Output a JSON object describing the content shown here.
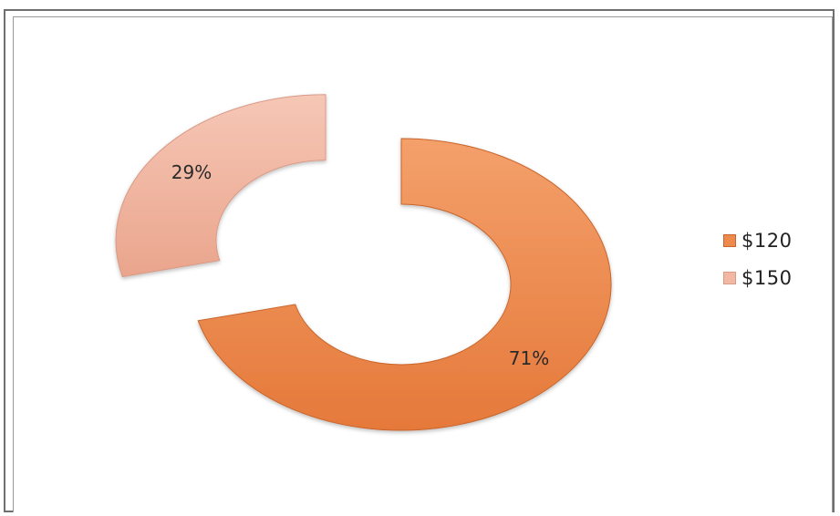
{
  "chart_data": {
    "type": "pie",
    "donut": true,
    "categories": [
      "$120",
      "$150"
    ],
    "values": [
      71,
      29
    ],
    "data_labels": [
      "71%",
      "29%"
    ],
    "colors": [
      "#ee8a4b",
      "#f2b8a3"
    ],
    "legend_position": "right",
    "title": ""
  }
}
